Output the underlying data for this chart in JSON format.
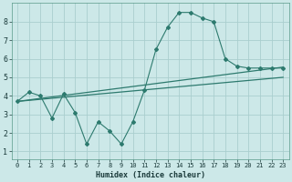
{
  "xlabel": "Humidex (Indice chaleur)",
  "bg_color": "#cce8e8",
  "grid_color": "#aacece",
  "line_color": "#2d7a6e",
  "x_ticks": [
    0,
    1,
    2,
    3,
    4,
    5,
    6,
    7,
    8,
    9,
    10,
    11,
    12,
    13,
    14,
    15,
    16,
    17,
    18,
    19,
    20,
    21,
    22,
    23
  ],
  "y_ticks": [
    1,
    2,
    3,
    4,
    5,
    6,
    7,
    8
  ],
  "ylim": [
    0.6,
    9.0
  ],
  "xlim": [
    -0.5,
    23.5
  ],
  "main_x": [
    0,
    1,
    2,
    3,
    4,
    5,
    6,
    7,
    8,
    9,
    10,
    11,
    12,
    13,
    14,
    15,
    16,
    17,
    18,
    19,
    20,
    21,
    22,
    23
  ],
  "main_y": [
    3.7,
    4.2,
    4.0,
    2.8,
    4.1,
    3.1,
    1.4,
    2.6,
    2.1,
    1.4,
    2.6,
    4.3,
    6.5,
    7.7,
    8.5,
    8.5,
    8.2,
    8.0,
    6.0,
    5.6,
    5.5,
    5.5,
    5.5,
    5.5
  ],
  "trend1_x": [
    0,
    23
  ],
  "trend1_y": [
    3.7,
    5.55
  ],
  "trend2_x": [
    0,
    23
  ],
  "trend2_y": [
    3.7,
    5.0
  ],
  "xlabel_fontsize": 6.0,
  "tick_fontsize_x": 5.0,
  "tick_fontsize_y": 6.0
}
